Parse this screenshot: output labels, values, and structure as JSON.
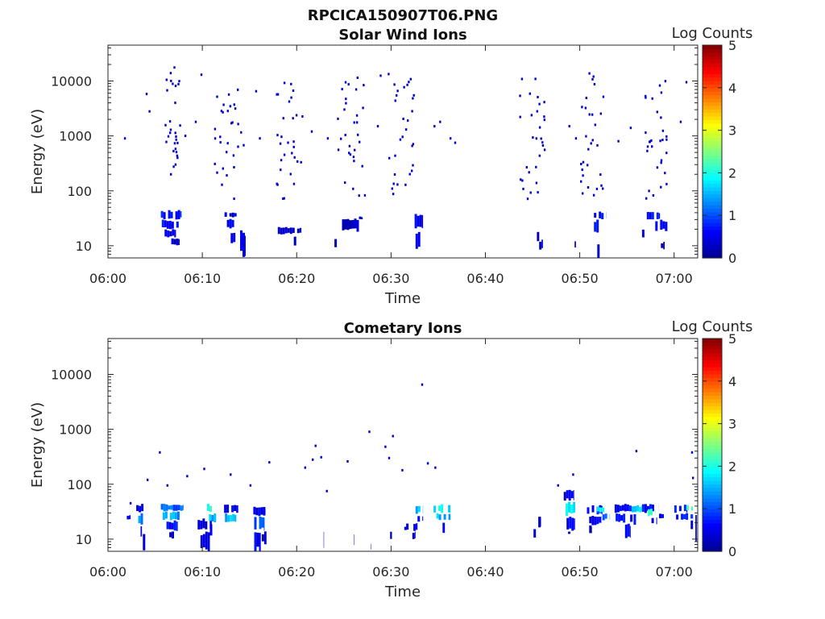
{
  "figure_title": "RPCICA150907T06.PNG",
  "colors": {
    "colormap": [
      "#00008f",
      "#0000ff",
      "#0080ff",
      "#00ffff",
      "#80ff80",
      "#ffff00",
      "#ff8000",
      "#ff0000",
      "#800000"
    ],
    "axis": "#262626"
  },
  "chart_data": [
    {
      "type": "heatmap",
      "title": "Solar Wind Ions",
      "xlabel": "Time",
      "ylabel": "Energy (eV)",
      "x_ticks": [
        "06:00",
        "06:10",
        "06:20",
        "06:30",
        "06:40",
        "06:50",
        "07:00"
      ],
      "y_ticks": [
        "10",
        "100",
        "1000",
        "10000"
      ],
      "y_scale": "log",
      "ylim": [
        6,
        45000
      ],
      "xlim_minutes": [
        0,
        62.5
      ],
      "colorbar": {
        "label": "Log Counts",
        "ticks": [
          "0",
          "1",
          "2",
          "3",
          "4",
          "5"
        ],
        "range": [
          0,
          5
        ]
      },
      "clusters": [
        {
          "t": [
            5.8,
            7.6
          ],
          "e": [
            180,
            18000
          ]
        },
        {
          "t": [
            11.2,
            14.3
          ],
          "e": [
            70,
            7000
          ]
        },
        {
          "t": [
            17.5,
            20.6
          ],
          "e": [
            70,
            10000
          ]
        },
        {
          "t": [
            24.2,
            27.2
          ],
          "e": [
            70,
            12000
          ]
        },
        {
          "t": [
            29.5,
            32.9
          ],
          "e": [
            70,
            14000
          ]
        },
        {
          "t": [
            43.5,
            46.2
          ],
          "e": [
            70,
            12000
          ]
        },
        {
          "t": [
            50,
            52.6
          ],
          "e": [
            70,
            17000
          ]
        },
        {
          "t": [
            56.5,
            59.2
          ],
          "e": [
            70,
            12000
          ]
        }
      ],
      "scatter": [
        [
          1.7,
          900
        ],
        [
          4,
          5800
        ],
        [
          4.3,
          2800
        ],
        [
          8.1,
          1000
        ],
        [
          9.2,
          1800
        ],
        [
          9.8,
          13000
        ],
        [
          15.6,
          6500
        ],
        [
          16,
          900
        ],
        [
          21.5,
          1200
        ],
        [
          23.2,
          900
        ],
        [
          28.5,
          1500
        ],
        [
          28.8,
          12500
        ],
        [
          34.5,
          1500
        ],
        [
          35.1,
          1800
        ],
        [
          36.2,
          900
        ],
        [
          36.7,
          750
        ],
        [
          48.8,
          1500
        ],
        [
          49.5,
          900
        ],
        [
          54,
          800
        ],
        [
          55.3,
          1400
        ],
        [
          60.6,
          1800
        ],
        [
          61.2,
          9500
        ]
      ],
      "cells": [
        [
          5.6,
          7.8,
          30,
          45,
          0.7
        ],
        [
          5.7,
          7.5,
          20,
          30,
          0.6
        ],
        [
          6,
          7.2,
          14,
          20,
          0.4
        ],
        [
          6.2,
          7.6,
          10,
          14,
          0.3
        ],
        [
          12.1,
          13.8,
          32,
          42,
          0.3
        ],
        [
          12.6,
          13.5,
          20,
          32,
          0.6
        ],
        [
          13,
          13.5,
          10,
          20,
          0.4
        ],
        [
          14,
          14.6,
          6,
          20,
          0.5
        ],
        [
          18,
          20.5,
          16,
          22,
          0.3
        ],
        [
          19.7,
          20.3,
          10,
          15,
          0.3
        ],
        [
          24.8,
          26.6,
          18,
          34,
          0.3
        ],
        [
          26.6,
          27,
          30,
          34,
          0.3
        ],
        [
          24,
          24.3,
          9,
          14,
          0.4
        ],
        [
          32.5,
          33.4,
          20,
          38,
          0.6
        ],
        [
          32.6,
          33.1,
          8.5,
          20,
          0.4
        ],
        [
          45.2,
          45.7,
          12,
          20,
          0.3
        ],
        [
          45.7,
          46.1,
          8.5,
          13,
          0.4
        ],
        [
          51.5,
          52.8,
          30,
          42,
          0.6
        ],
        [
          51.5,
          52.5,
          16,
          30,
          0.7
        ],
        [
          51.6,
          52.4,
          6,
          12,
          0.5
        ],
        [
          49.2,
          49.6,
          8.5,
          13,
          0.4
        ],
        [
          57.1,
          58.5,
          30,
          42,
          0.6
        ],
        [
          58,
          59.3,
          18,
          30,
          0.7
        ],
        [
          56.6,
          57,
          14,
          20,
          0.3
        ],
        [
          58.6,
          59,
          8.5,
          12,
          0.3
        ]
      ]
    },
    {
      "type": "heatmap",
      "title": "Cometary Ions",
      "xlabel": "Time",
      "ylabel": "Energy (eV)",
      "x_ticks": [
        "06:00",
        "06:10",
        "06:20",
        "06:30",
        "06:40",
        "06:50",
        "07:00"
      ],
      "y_ticks": [
        "10",
        "100",
        "1000",
        "10000"
      ],
      "y_scale": "log",
      "ylim": [
        6,
        45000
      ],
      "xlim_minutes": [
        0,
        62.5
      ],
      "colorbar": {
        "label": "Log Counts",
        "ticks": [
          "0",
          "1",
          "2",
          "3",
          "4",
          "5"
        ],
        "range": [
          0,
          5
        ]
      },
      "cells": [
        [
          2,
          2.4,
          22,
          28,
          0.4
        ],
        [
          3,
          3.8,
          30,
          44,
          0.6
        ],
        [
          3.2,
          3.9,
          18,
          30,
          1.4
        ],
        [
          3.2,
          3.6,
          10,
          18,
          0.5
        ],
        [
          3.7,
          4,
          6,
          14,
          0.3
        ],
        [
          5.6,
          8,
          32,
          44,
          1.1
        ],
        [
          5.8,
          7.6,
          22,
          32,
          1.4
        ],
        [
          6.2,
          7.4,
          14,
          22,
          0.7
        ],
        [
          6.5,
          7,
          10,
          14,
          0.3
        ],
        [
          9.5,
          11,
          14,
          24,
          0.4
        ],
        [
          9.8,
          10.8,
          6,
          14,
          0.5
        ],
        [
          10.5,
          11.2,
          30,
          44,
          2
        ],
        [
          10.7,
          11.5,
          20,
          30,
          1.5
        ],
        [
          10.8,
          11.3,
          10,
          20,
          0.4
        ],
        [
          12.3,
          13.8,
          30,
          44,
          0.5
        ],
        [
          12.4,
          13.6,
          20,
          30,
          1.5
        ],
        [
          12.5,
          13,
          10,
          20,
          0.6
        ],
        [
          15.4,
          16.7,
          26,
          40,
          0.5
        ],
        [
          15.5,
          16.6,
          14,
          26,
          0.9
        ],
        [
          15.5,
          16.2,
          6,
          14,
          0.5
        ],
        [
          16.3,
          16.8,
          8,
          14,
          0.4
        ],
        [
          21.6,
          21.9,
          11,
          15,
          0.3
        ],
        [
          22.6,
          22.9,
          6,
          14,
          0.4
        ],
        [
          25.8,
          26.1,
          7,
          14,
          0.3
        ],
        [
          27.6,
          27.9,
          6,
          9,
          0.4
        ],
        [
          29.9,
          30.1,
          10,
          14,
          0.3
        ],
        [
          31.4,
          31.7,
          14,
          17,
          0.3
        ],
        [
          31.6,
          32.8,
          14,
          20,
          0.4
        ],
        [
          32,
          32.6,
          10,
          14,
          0.3
        ],
        [
          32.6,
          33.4,
          28,
          44,
          1.6
        ],
        [
          32.8,
          33.4,
          20,
          28,
          0.6
        ],
        [
          34.5,
          36.6,
          30,
          44,
          1.8
        ],
        [
          34.8,
          36.3,
          22,
          30,
          1.6
        ],
        [
          35.2,
          35.7,
          12,
          22,
          0.4
        ],
        [
          45.1,
          45.7,
          10,
          16,
          0.4
        ],
        [
          45.6,
          45.9,
          16,
          26,
          0.3
        ],
        [
          48.3,
          49.4,
          50,
          80,
          0.4
        ],
        [
          48.5,
          49.6,
          26,
          50,
          1.8
        ],
        [
          48.6,
          49.5,
          14,
          26,
          0.6
        ],
        [
          48.5,
          49.1,
          12,
          14,
          0.3
        ],
        [
          50.5,
          52.4,
          28,
          42,
          0.7
        ],
        [
          51,
          52.3,
          18,
          28,
          0.6
        ],
        [
          51,
          51.3,
          12,
          18,
          0.3
        ],
        [
          51.8,
          52.6,
          30,
          40,
          1.8
        ],
        [
          52.4,
          53.2,
          22,
          30,
          1
        ],
        [
          53.7,
          55.5,
          30,
          44,
          0.6
        ],
        [
          53.8,
          55.6,
          20,
          30,
          0.7
        ],
        [
          54.8,
          55.4,
          10,
          20,
          0.5
        ],
        [
          55.5,
          56.6,
          30,
          42,
          1.8
        ],
        [
          55.7,
          56.4,
          18,
          30,
          0.6
        ],
        [
          56.6,
          58.4,
          30,
          44,
          0.6
        ],
        [
          57.2,
          58,
          26,
          36,
          2.2
        ],
        [
          57.6,
          58.2,
          18,
          26,
          0.6
        ],
        [
          58.4,
          59.2,
          24,
          30,
          0.5
        ],
        [
          59.5,
          61.4,
          30,
          44,
          0.6
        ],
        [
          60.2,
          62,
          22,
          30,
          0.7
        ],
        [
          61.3,
          62,
          32,
          42,
          2
        ],
        [
          61.5,
          62,
          14,
          22,
          0.4
        ],
        [
          62,
          62.4,
          6,
          40,
          0.5
        ]
      ],
      "scatter": [
        [
          2.3,
          45
        ],
        [
          4.1,
          120
        ],
        [
          5.4,
          380
        ],
        [
          6.2,
          95
        ],
        [
          8.3,
          140
        ],
        [
          10.1,
          190
        ],
        [
          12.9,
          150
        ],
        [
          15,
          95
        ],
        [
          17,
          250
        ],
        [
          20.8,
          200
        ],
        [
          21.6,
          280
        ],
        [
          21.9,
          500
        ],
        [
          23.1,
          75
        ],
        [
          22.5,
          310
        ],
        [
          25.3,
          260
        ],
        [
          27.6,
          900
        ],
        [
          29.3,
          480
        ],
        [
          29.7,
          300
        ],
        [
          30.1,
          750
        ],
        [
          31.1,
          180
        ],
        [
          33.2,
          6500
        ],
        [
          33.8,
          240
        ],
        [
          34.6,
          200
        ],
        [
          47.6,
          95
        ],
        [
          49.2,
          150
        ],
        [
          55.9,
          400
        ],
        [
          61.8,
          380
        ],
        [
          61.9,
          130
        ]
      ]
    }
  ]
}
